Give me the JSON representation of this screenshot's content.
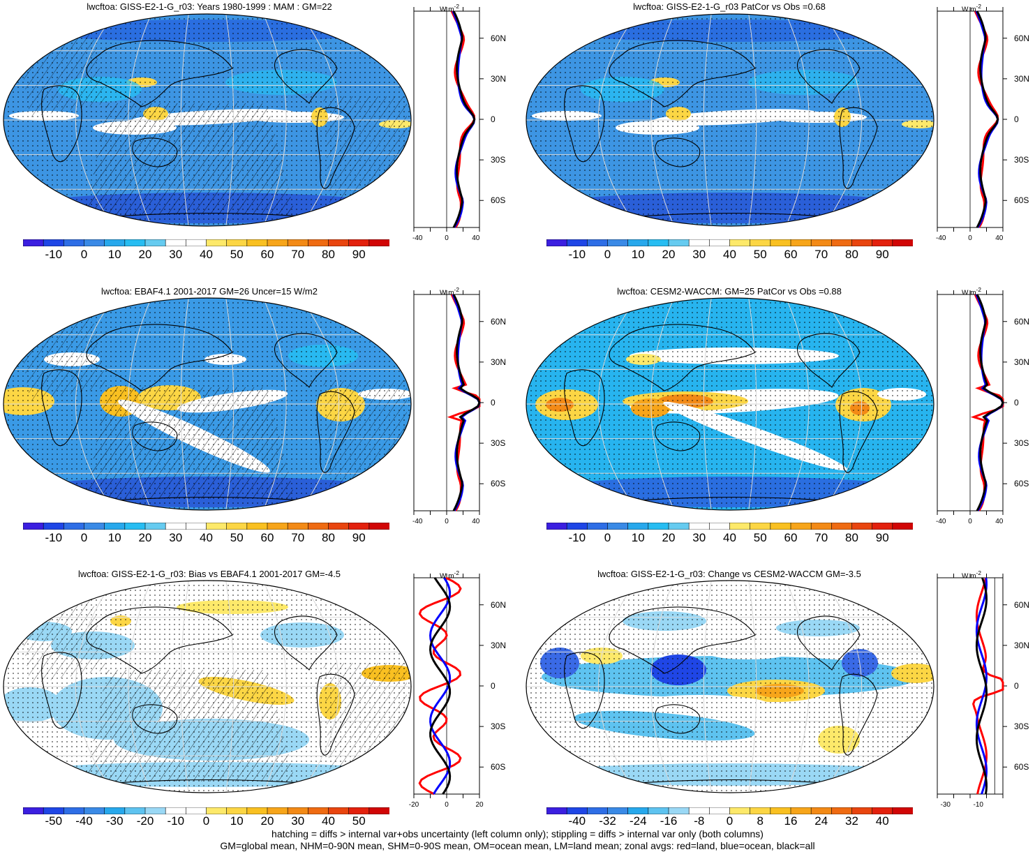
{
  "panels": [
    {
      "title": "lwcftoa: GISS-E2-1-G_r03: Years 1980-1999 : MAM : GM=22",
      "kind": "clim",
      "colorbar_labels": [
        "-10",
        "0",
        "10",
        "20",
        "30",
        "40",
        "50",
        "60",
        "70",
        "80",
        "90"
      ],
      "colorbar_colors": [
        "#3b1fe0",
        "#1f46e6",
        "#2e6ee6",
        "#3a8ae6",
        "#27a8ec",
        "#27bdf2",
        "#66cbf0",
        "#ffffff",
        "#ffffff",
        "#fde96a",
        "#fcd644",
        "#f9c021",
        "#f7a51a",
        "#f38a16",
        "#ef6b12",
        "#e9450f",
        "#e3210d",
        "#d10505"
      ],
      "zonal": {
        "units": "W m-2",
        "xticks": [
          "-40",
          "0",
          "40"
        ],
        "yticks": [
          "60N",
          "30N",
          "0",
          "30S",
          "60S"
        ]
      }
    },
    {
      "title": "lwcftoa: GISS-E2-1-G_r03 PatCor vs Obs =0.68",
      "kind": "clim",
      "colorbar_labels": [
        "-10",
        "0",
        "10",
        "20",
        "30",
        "40",
        "50",
        "60",
        "70",
        "80",
        "90"
      ],
      "colorbar_colors": [
        "#3b1fe0",
        "#1f46e6",
        "#2e6ee6",
        "#3a8ae6",
        "#27a8ec",
        "#27bdf2",
        "#66cbf0",
        "#ffffff",
        "#ffffff",
        "#fde96a",
        "#fcd644",
        "#f9c021",
        "#f7a51a",
        "#f38a16",
        "#ef6b12",
        "#e9450f",
        "#e3210d",
        "#d10505"
      ],
      "zonal": {
        "units": "W m-2",
        "xticks": [
          "-40",
          "0",
          "40"
        ],
        "yticks": [
          "60N",
          "30N",
          "0",
          "30S",
          "60S"
        ]
      }
    },
    {
      "title": "lwcftoa: EBAF4.1 2001-2017 GM=26 Uncer=15 W/m2",
      "kind": "obs",
      "colorbar_labels": [
        "-10",
        "0",
        "10",
        "20",
        "30",
        "40",
        "50",
        "60",
        "70",
        "80",
        "90"
      ],
      "colorbar_colors": [
        "#3b1fe0",
        "#1f46e6",
        "#2e6ee6",
        "#3a8ae6",
        "#27a8ec",
        "#27bdf2",
        "#66cbf0",
        "#ffffff",
        "#ffffff",
        "#fde96a",
        "#fcd644",
        "#f9c021",
        "#f7a51a",
        "#f38a16",
        "#ef6b12",
        "#e9450f",
        "#e3210d",
        "#d10505"
      ],
      "zonal": {
        "units": "W m-2",
        "xticks": [
          "-40",
          "0",
          "40"
        ],
        "yticks": [
          "60N",
          "30N",
          "0",
          "30S",
          "60S"
        ]
      }
    },
    {
      "title": "lwcftoa: CESM2-WACCM: GM=25 PatCor vs Obs =0.88",
      "kind": "obs",
      "colorbar_labels": [
        "-10",
        "0",
        "10",
        "20",
        "30",
        "40",
        "50",
        "60",
        "70",
        "80",
        "90"
      ],
      "colorbar_colors": [
        "#3b1fe0",
        "#1f46e6",
        "#2e6ee6",
        "#3a8ae6",
        "#27a8ec",
        "#27bdf2",
        "#66cbf0",
        "#ffffff",
        "#ffffff",
        "#fde96a",
        "#fcd644",
        "#f9c021",
        "#f7a51a",
        "#f38a16",
        "#ef6b12",
        "#e9450f",
        "#e3210d",
        "#d10505"
      ],
      "zonal": {
        "units": "W m-2",
        "xticks": [
          "-40",
          "0",
          "40"
        ],
        "yticks": [
          "60N",
          "30N",
          "0",
          "30S",
          "60S"
        ]
      }
    },
    {
      "title": "lwcftoa: GISS-E2-1-G_r03: Bias vs EBAF4.1 2001-2017 GM=-4.5",
      "kind": "diff",
      "colorbar_labels": [
        "-50",
        "-40",
        "-30",
        "-20",
        "-10",
        "0",
        "10",
        "20",
        "30",
        "40",
        "50"
      ],
      "colorbar_colors": [
        "#3b1fe0",
        "#1f46e6",
        "#2e6ee6",
        "#3a8ae6",
        "#27a8ec",
        "#5ec3f0",
        "#9ad8f5",
        "#ffffff",
        "#ffffff",
        "#fde96a",
        "#fcd644",
        "#f9c021",
        "#f7a51a",
        "#f38a16",
        "#ef6b12",
        "#e9450f",
        "#e3210d",
        "#d10505"
      ],
      "zonal": {
        "units": "W m-2",
        "xticks": [
          "-20",
          "0",
          "20"
        ],
        "yticks": [
          "60N",
          "30N",
          "0",
          "30S",
          "60S"
        ]
      }
    },
    {
      "title": "lwcftoa: GISS-E2-1-G_r03: Change vs CESM2-WACCM GM=-3.5",
      "kind": "diff",
      "colorbar_labels": [
        "-40",
        "-32",
        "-24",
        "-16",
        "-8",
        "0",
        "8",
        "16",
        "24",
        "32",
        "40"
      ],
      "colorbar_colors": [
        "#3b1fe0",
        "#1f46e6",
        "#2e6ee6",
        "#3a8ae6",
        "#27a8ec",
        "#5ec3f0",
        "#9ad8f5",
        "#ffffff",
        "#ffffff",
        "#fde96a",
        "#fcd644",
        "#f9c021",
        "#f7a51a",
        "#f38a16",
        "#ef6b12",
        "#e9450f",
        "#e3210d",
        "#d10505"
      ],
      "zonal": {
        "units": "W m-2",
        "xticks": [
          "-30",
          "-10"
        ],
        "yticks": [
          "60N",
          "30N",
          "0",
          "30S",
          "60S"
        ]
      }
    }
  ],
  "footer": {
    "line1": "hatching = diffs > internal var+obs uncertainty (left column only); stippling = diffs > internal var only (both columns)",
    "line2": "GM=global mean, NHM=0-90N mean, SHM=0-90S mean, OM=ocean mean, LM=land mean; zonal avgs: red=land, blue=ocean, black=all"
  },
  "colors": {
    "land_line": "#ff0000",
    "ocean_line": "#0000ff",
    "all_line": "#000000"
  }
}
